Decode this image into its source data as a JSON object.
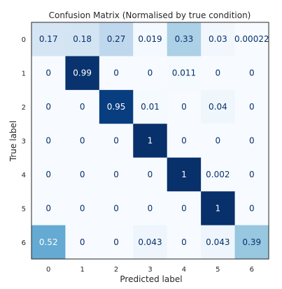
{
  "chart_data": {
    "type": "heatmap",
    "title": "Confusion Matrix (Normalised by true condition)",
    "xlabel": "Predicted label",
    "ylabel": "True label",
    "x_categories": [
      "0",
      "1",
      "2",
      "3",
      "4",
      "5",
      "6"
    ],
    "y_categories": [
      "0",
      "1",
      "2",
      "3",
      "4",
      "5",
      "6"
    ],
    "values": [
      [
        0.17,
        0.18,
        0.27,
        0.019,
        0.33,
        0.03,
        0.00022
      ],
      [
        0,
        0.99,
        0,
        0,
        0.011,
        0,
        0
      ],
      [
        0,
        0,
        0.95,
        0.01,
        0,
        0.04,
        0
      ],
      [
        0,
        0,
        0,
        1,
        0,
        0,
        0
      ],
      [
        0,
        0,
        0,
        0,
        1,
        0.002,
        0
      ],
      [
        0,
        0,
        0,
        0,
        0,
        1,
        0
      ],
      [
        0.52,
        0,
        0,
        0.043,
        0,
        0.043,
        0.39
      ]
    ],
    "value_labels": [
      [
        "0.17",
        "0.18",
        "0.27",
        "0.019",
        "0.33",
        "0.03",
        "0.00022"
      ],
      [
        "0",
        "0.99",
        "0",
        "0",
        "0.011",
        "0",
        "0"
      ],
      [
        "0",
        "0",
        "0.95",
        "0.01",
        "0",
        "0.04",
        "0"
      ],
      [
        "0",
        "0",
        "0",
        "1",
        "0",
        "0",
        "0"
      ],
      [
        "0",
        "0",
        "0",
        "0",
        "1",
        "0.002",
        "0"
      ],
      [
        "0",
        "0",
        "0",
        "0",
        "0",
        "1",
        "0"
      ],
      [
        "0.52",
        "0",
        "0",
        "0.043",
        "0",
        "0.043",
        "0.39"
      ]
    ],
    "colormap": "Blues",
    "vmin": 0,
    "vmax": 1,
    "grid": false,
    "colors": {
      "low": "#f7fbff",
      "high": "#08306b",
      "text_dark": "#08306b",
      "text_light": "#ffffff"
    }
  }
}
